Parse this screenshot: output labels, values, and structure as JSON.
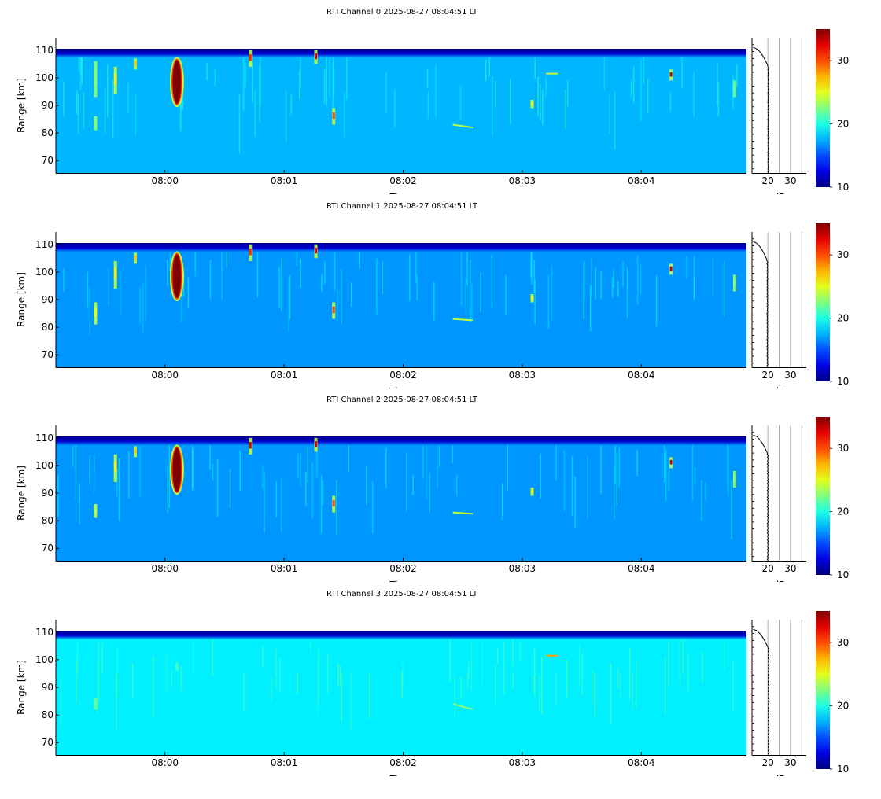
{
  "chart_data": {
    "type": "heatmap",
    "colorscale": "jet",
    "panels": [
      {
        "title": "RTI Channel 0 2025-08-27 08:04:51 LT",
        "xlabel": "Time",
        "ylabel": "Range [km]",
        "xticks": [
          "08:00",
          "08:01",
          "08:02",
          "08:03",
          "08:04"
        ],
        "yticks": [
          70,
          80,
          90,
          100,
          110
        ],
        "ylim": [
          65.5,
          114.5
        ],
        "background_db": 17.6,
        "features": [
          {
            "kind": "blob",
            "time": "08:00:06",
            "range": [
              90,
              107
            ],
            "db": 36
          },
          {
            "kind": "column",
            "time": "07:59:25",
            "range": [
              93,
              106
            ],
            "db": 23
          },
          {
            "kind": "column",
            "time": "07:59:25",
            "range": [
              81,
              86
            ],
            "db": 23
          },
          {
            "kind": "column",
            "time": "07:59:35",
            "range": [
              94,
              104
            ],
            "db": 26
          },
          {
            "kind": "column",
            "time": "07:59:45",
            "range": [
              103,
              107
            ],
            "db": 27
          },
          {
            "kind": "column",
            "time": "08:00:43",
            "range": [
              104,
              110
            ],
            "db": 31
          },
          {
            "kind": "column",
            "time": "08:01:16",
            "range": [
              105,
              110
            ],
            "db": 33
          },
          {
            "kind": "column",
            "time": "08:01:25",
            "range": [
              83,
              89
            ],
            "db": 30
          },
          {
            "kind": "column",
            "time": "08:03:05",
            "range": [
              89,
              92
            ],
            "db": 26
          },
          {
            "kind": "column",
            "time": "08:04:15",
            "range": [
              99,
              103
            ],
            "db": 33
          },
          {
            "kind": "column",
            "time": "08:04:47",
            "range": [
              93,
              99
            ],
            "db": 22
          },
          {
            "kind": "streak",
            "time": [
              "08:02:25",
              "08:02:35"
            ],
            "range": [
              83,
              82
            ],
            "db": 24
          },
          {
            "kind": "streak",
            "time": [
              "08:03:12",
              "08:03:18"
            ],
            "range": [
              101.5,
              101.5
            ],
            "db": 24
          }
        ],
        "profile": {
          "xlim": [
            13,
            37
          ],
          "xticks": [
            20,
            30
          ],
          "xlabel": "dB",
          "baseline_db": 20.2,
          "top_db": 13.5
        }
      },
      {
        "title": "RTI Channel 1 2025-08-27 08:04:51 LT",
        "xlabel": "Time",
        "ylabel": "Range [km]",
        "xticks": [
          "08:00",
          "08:01",
          "08:02",
          "08:03",
          "08:04"
        ],
        "yticks": [
          70,
          80,
          90,
          100,
          110
        ],
        "ylim": [
          65.5,
          114.5
        ],
        "background_db": 16.8,
        "features": [
          {
            "kind": "blob",
            "time": "08:00:06",
            "range": [
              90,
              107
            ],
            "db": 36
          },
          {
            "kind": "column",
            "time": "07:59:25",
            "range": [
              81,
              89
            ],
            "db": 25
          },
          {
            "kind": "column",
            "time": "07:59:35",
            "range": [
              94,
              104
            ],
            "db": 26
          },
          {
            "kind": "column",
            "time": "07:59:45",
            "range": [
              103,
              107
            ],
            "db": 27
          },
          {
            "kind": "column",
            "time": "08:00:43",
            "range": [
              104,
              110
            ],
            "db": 31
          },
          {
            "kind": "column",
            "time": "08:01:16",
            "range": [
              105,
              110
            ],
            "db": 33
          },
          {
            "kind": "column",
            "time": "08:01:25",
            "range": [
              83,
              89
            ],
            "db": 30
          },
          {
            "kind": "column",
            "time": "08:03:05",
            "range": [
              89,
              92
            ],
            "db": 26
          },
          {
            "kind": "column",
            "time": "08:04:15",
            "range": [
              99,
              103
            ],
            "db": 33
          },
          {
            "kind": "column",
            "time": "08:04:47",
            "range": [
              93,
              99
            ],
            "db": 23
          },
          {
            "kind": "streak",
            "time": [
              "08:02:25",
              "08:02:35"
            ],
            "range": [
              83,
              82.5
            ],
            "db": 24
          }
        ],
        "profile": {
          "xlim": [
            13,
            37
          ],
          "xticks": [
            20,
            30
          ],
          "xlabel": "dB",
          "baseline_db": 19.8,
          "top_db": 13.5
        }
      },
      {
        "title": "RTI Channel 2 2025-08-27 08:04:51 LT",
        "xlabel": "Time",
        "ylabel": "Range [km]",
        "xticks": [
          "08:00",
          "08:01",
          "08:02",
          "08:03",
          "08:04"
        ],
        "yticks": [
          70,
          80,
          90,
          100,
          110
        ],
        "ylim": [
          65.5,
          114.5
        ],
        "background_db": 16.8,
        "features": [
          {
            "kind": "blob",
            "time": "08:00:06",
            "range": [
              90,
              107
            ],
            "db": 36
          },
          {
            "kind": "column",
            "time": "07:59:25",
            "range": [
              81,
              86
            ],
            "db": 24
          },
          {
            "kind": "column",
            "time": "07:59:35",
            "range": [
              94,
              104
            ],
            "db": 26
          },
          {
            "kind": "column",
            "time": "07:59:45",
            "range": [
              103,
              107
            ],
            "db": 27
          },
          {
            "kind": "column",
            "time": "08:00:43",
            "range": [
              104,
              110
            ],
            "db": 33
          },
          {
            "kind": "column",
            "time": "08:01:16",
            "range": [
              105,
              110
            ],
            "db": 33
          },
          {
            "kind": "column",
            "time": "08:01:25",
            "range": [
              83,
              89
            ],
            "db": 30
          },
          {
            "kind": "column",
            "time": "08:03:05",
            "range": [
              89,
              92
            ],
            "db": 26
          },
          {
            "kind": "column",
            "time": "08:04:15",
            "range": [
              99,
              103
            ],
            "db": 33
          },
          {
            "kind": "column",
            "time": "08:04:47",
            "range": [
              92,
              98
            ],
            "db": 23
          },
          {
            "kind": "streak",
            "time": [
              "08:02:25",
              "08:02:35"
            ],
            "range": [
              83,
              82.5
            ],
            "db": 24
          }
        ],
        "profile": {
          "xlim": [
            13,
            37
          ],
          "xticks": [
            20,
            30
          ],
          "xlabel": "dB",
          "baseline_db": 20.0,
          "top_db": 13.5
        }
      },
      {
        "title": "RTI Channel 3 2025-08-27 08:04:51 LT",
        "xlabel": "Time",
        "ylabel": "Range [km]",
        "xticks": [
          "08:00",
          "08:01",
          "08:02",
          "08:03",
          "08:04"
        ],
        "yticks": [
          70,
          80,
          90,
          100,
          110
        ],
        "ylim": [
          65.5,
          114.5
        ],
        "background_db": 19.0,
        "features": [
          {
            "kind": "column",
            "time": "07:59:25",
            "range": [
              82,
              86
            ],
            "db": 22
          },
          {
            "kind": "column",
            "time": "08:00:06",
            "range": [
              96,
              99
            ],
            "db": 21
          },
          {
            "kind": "streak",
            "time": [
              "08:02:25",
              "08:02:35"
            ],
            "range": [
              84,
              82
            ],
            "db": 23
          },
          {
            "kind": "streak",
            "time": [
              "08:03:12",
              "08:03:18"
            ],
            "range": [
              101.5,
              101.5
            ],
            "db": 28
          }
        ],
        "profile": {
          "xlim": [
            13,
            37
          ],
          "xticks": [
            20,
            30
          ],
          "xlabel": "dB",
          "baseline_db": 20.3,
          "top_db": 13.5
        }
      }
    ],
    "colorbar": {
      "range": [
        10,
        35
      ],
      "ticks": [
        10,
        20,
        30
      ]
    }
  }
}
